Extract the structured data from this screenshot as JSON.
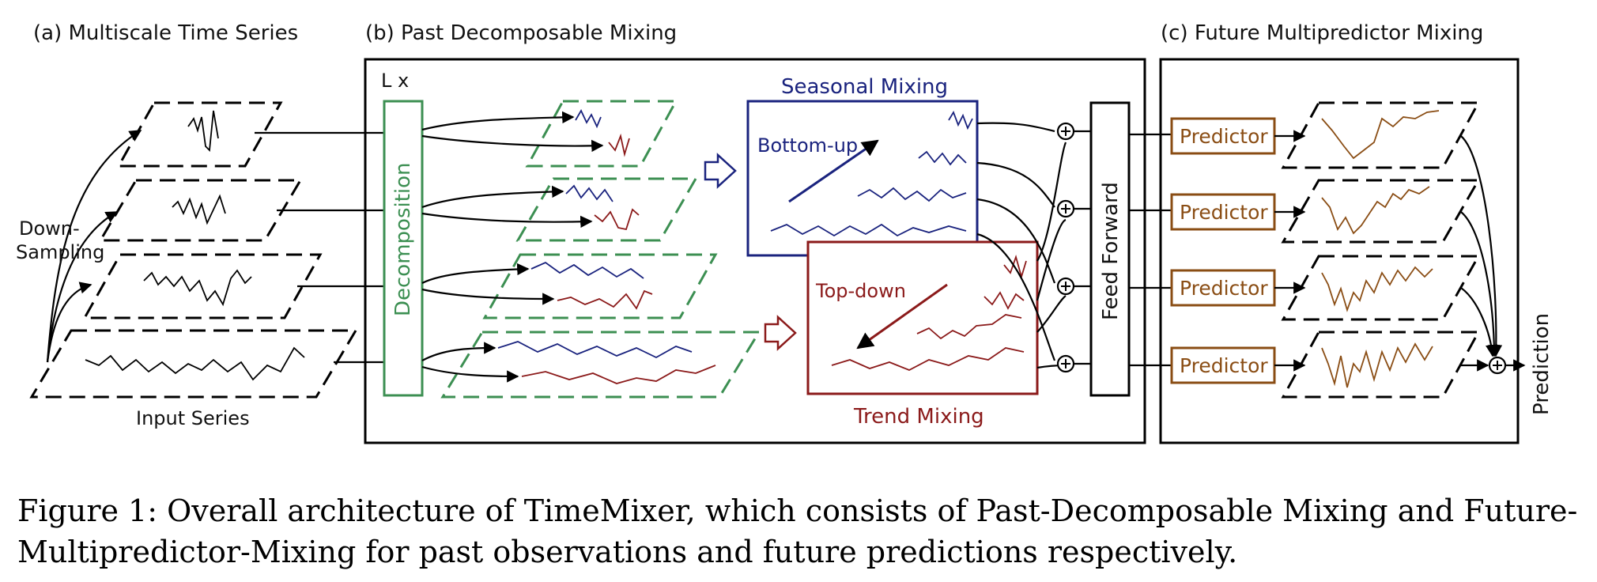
{
  "figure": {
    "panel_a": {
      "title": "(a) Multiscale Time Series",
      "downsampling_label_1": "Down-",
      "downsampling_label_2": "Sampling",
      "input_label": "Input Series"
    },
    "panel_b": {
      "title": "(b) Past Decomposable Mixing",
      "repeat_label": "L x",
      "decomposition_label": "Decomposition",
      "seasonal_title": "Seasonal Mixing",
      "seasonal_direction": "Bottom-up",
      "trend_title": "Trend Mixing",
      "trend_direction": "Top-down",
      "feed_forward_label": "Feed Forward"
    },
    "panel_c": {
      "title": "(c) Future Multipredictor Mixing",
      "predictor_labels": [
        "Predictor",
        "Predictor",
        "Predictor",
        "Predictor"
      ],
      "output_label": "Prediction"
    },
    "colors": {
      "seasonal": "#1a237e",
      "trend": "#8b1a1a",
      "decomposition": "#3c8f52",
      "predictor": "#8a4d14"
    }
  },
  "caption": "Figure 1: Overall architecture of TimeMixer, which consists of Past-Decomposable Mixing and Future-Multipredictor-Mixing for past observations and future predictions respectively."
}
